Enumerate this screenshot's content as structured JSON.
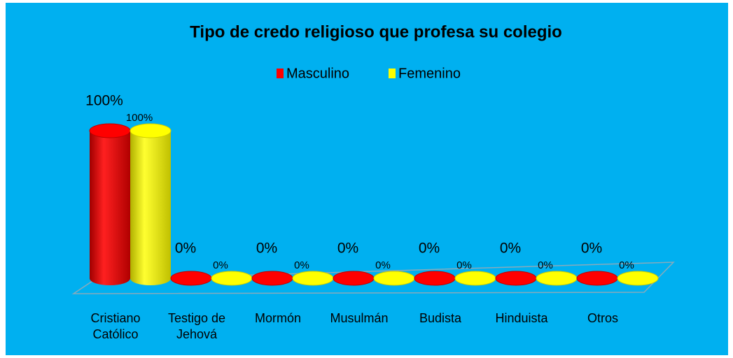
{
  "chart_data": {
    "type": "bar",
    "title": "Tipo de credo religioso  que profesa  su colegio",
    "categories": [
      "Cristiano\nCatólico",
      "Testigo de\nJehová",
      "Mormón",
      "Musulmán",
      "Budista",
      "Hinduista",
      "Otros"
    ],
    "series": [
      {
        "name": "Masculino",
        "color": "#ff0000",
        "values": [
          100,
          0,
          0,
          0,
          0,
          0,
          0
        ],
        "value_labels": [
          "100%",
          "0%",
          "0%",
          "0%",
          "0%",
          "0%",
          "0%"
        ]
      },
      {
        "name": "Femenino",
        "color": "#ffff00",
        "values": [
          100,
          0,
          0,
          0,
          0,
          0,
          0
        ],
        "value_labels": [
          "100%",
          "0%",
          "0%",
          "0%",
          "0%",
          "0%",
          "0%"
        ]
      }
    ]
  }
}
